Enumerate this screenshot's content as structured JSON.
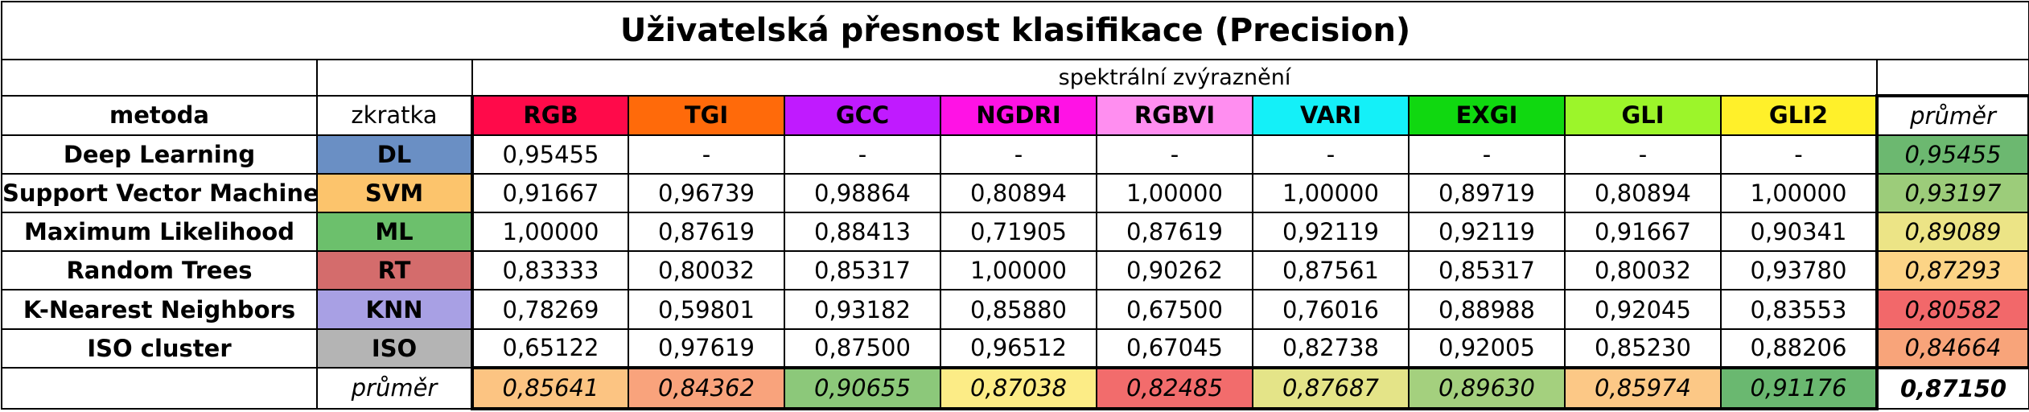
{
  "title": "Uživatelská přesnost klasifikace (Precision)",
  "spectral_header": "spektrální zvýraznění",
  "headers": {
    "method": "metoda",
    "abbr": "zkratka",
    "avg": "průměr"
  },
  "enhancements": [
    {
      "label": "RGB",
      "color": "#ff0a4a"
    },
    {
      "label": "TGI",
      "color": "#ff6a0a"
    },
    {
      "label": "GCC",
      "color": "#c01aff"
    },
    {
      "label": "NGDRI",
      "color": "#ff12e5"
    },
    {
      "label": "RGBVI",
      "color": "#ff8ef0"
    },
    {
      "label": "VARI",
      "color": "#14f0f8"
    },
    {
      "label": "EXGI",
      "color": "#10d810"
    },
    {
      "label": "GLI",
      "color": "#9cf52a"
    },
    {
      "label": "GLI2",
      "color": "#fff02a"
    }
  ],
  "methods": [
    {
      "name": "Deep Learning",
      "abbr": "DL",
      "abbr_color": "#6a8fc4",
      "values": [
        "0,95455",
        "-",
        "-",
        "-",
        "-",
        "-",
        "-",
        "-",
        "-"
      ],
      "avg": "0,95455",
      "avg_color": "#6cb870"
    },
    {
      "name": "Support Vector Machine",
      "abbr": "SVM",
      "abbr_color": "#fcc46c",
      "values": [
        "0,91667",
        "0,96739",
        "0,98864",
        "0,80894",
        "1,00000",
        "1,00000",
        "0,89719",
        "0,80894",
        "1,00000"
      ],
      "avg": "0,93197",
      "avg_color": "#9ccc7a"
    },
    {
      "name": "Maximum Likelihood",
      "abbr": "ML",
      "abbr_color": "#6cc06c",
      "values": [
        "1,00000",
        "0,87619",
        "0,88413",
        "0,71905",
        "0,87619",
        "0,92119",
        "0,92119",
        "0,91667",
        "0,90341"
      ],
      "avg": "0,89089",
      "avg_color": "#ece486"
    },
    {
      "name": "Random Trees",
      "abbr": "RT",
      "abbr_color": "#d46c6c",
      "values": [
        "0,83333",
        "0,80032",
        "0,85317",
        "1,00000",
        "0,90262",
        "0,87561",
        "0,85317",
        "0,80032",
        "0,93780"
      ],
      "avg": "0,87293",
      "avg_color": "#fcd486"
    },
    {
      "name": "K-Nearest Neighbors",
      "abbr": "KNN",
      "abbr_color": "#a8a0e4",
      "values": [
        "0,78269",
        "0,59801",
        "0,93182",
        "0,85880",
        "0,67500",
        "0,76016",
        "0,88988",
        "0,92045",
        "0,83553"
      ],
      "avg": "0,80582",
      "avg_color": "#f2686a"
    },
    {
      "name": "ISO cluster",
      "abbr": "ISO",
      "abbr_color": "#b4b4b4",
      "values": [
        "0,65122",
        "0,97619",
        "0,87500",
        "0,96512",
        "0,67045",
        "0,82738",
        "0,92005",
        "0,85230",
        "0,88206"
      ],
      "avg": "0,84664",
      "avg_color": "#f8a47a"
    }
  ],
  "column_avgs": [
    {
      "value": "0,85641",
      "color": "#fcc482"
    },
    {
      "value": "0,84362",
      "color": "#f9a37c"
    },
    {
      "value": "0,90655",
      "color": "#8cc87a"
    },
    {
      "value": "0,87038",
      "color": "#fcec86"
    },
    {
      "value": "0,82485",
      "color": "#f26c6c"
    },
    {
      "value": "0,87687",
      "color": "#e4e488"
    },
    {
      "value": "0,89630",
      "color": "#a4d07e"
    },
    {
      "value": "0,85974",
      "color": "#fcc886"
    },
    {
      "value": "0,91176",
      "color": "#6ab870"
    }
  ],
  "overall_avg": "0,87150"
}
